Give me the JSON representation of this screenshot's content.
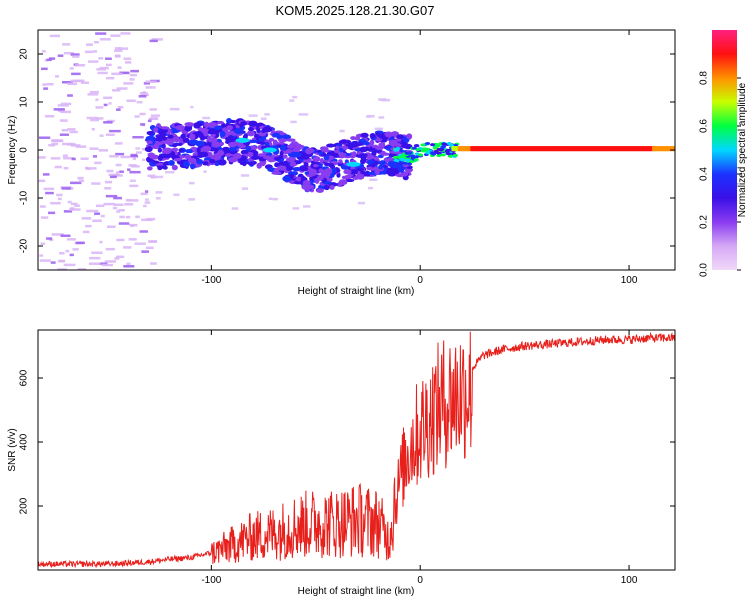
{
  "title": "KOM5.2025.128.21.30.G07",
  "chart_data": [
    {
      "type": "heatmap",
      "xlabel": "Height of straight line (km)",
      "ylabel": "Frequency (Hz)",
      "xlim": [
        -183,
        122
      ],
      "ylim": [
        -25,
        25
      ],
      "xticks": [
        -100,
        0,
        100
      ],
      "yticks": [
        -20,
        -10,
        0,
        10,
        20
      ],
      "colorbar": {
        "label": "Normalized spectral amplitude",
        "range": [
          0,
          1
        ],
        "ticks": [
          0.0,
          0.2,
          0.4,
          0.6,
          0.8
        ],
        "tick_labels": [
          "0.0",
          "0.2",
          "0.4",
          "0.6",
          "0.8"
        ],
        "colors": [
          "#f0d8f8",
          "#d5a8f5",
          "#8a3cf0",
          "#3a10e8",
          "#1b33ff",
          "#00d8ff",
          "#00ff40",
          "#c8ff00",
          "#ff9000",
          "#ff1010",
          "#ff2080"
        ]
      },
      "ridge": [
        {
          "x": -130,
          "y": 0.5
        },
        {
          "x": -110,
          "y": 1.0
        },
        {
          "x": -90,
          "y": 1.8
        },
        {
          "x": -80,
          "y": 1.5
        },
        {
          "x": -70,
          "y": 0.0
        },
        {
          "x": -60,
          "y": -3.0
        },
        {
          "x": -50,
          "y": -4.5
        },
        {
          "x": -40,
          "y": -3.0
        },
        {
          "x": -30,
          "y": -1.5
        },
        {
          "x": -15,
          "y": -0.5
        },
        {
          "x": -5,
          "y": -1.5
        },
        {
          "x": 0,
          "y": 0.0
        },
        {
          "x": 10,
          "y": 0.0
        },
        {
          "x": 122,
          "y": -0.5
        }
      ]
    },
    {
      "type": "line",
      "xlabel": "Height of straight line (km)",
      "ylabel": "SNR (v/v)",
      "xlim": [
        -183,
        122
      ],
      "ylim": [
        0,
        750
      ],
      "xticks": [
        -100,
        0,
        100
      ],
      "yticks": [
        200,
        400,
        600
      ],
      "series": [
        {
          "color": "#e8201c",
          "x": [
            -183,
            -170,
            -150,
            -140,
            -130,
            -120,
            -110,
            -100,
            -90,
            -80,
            -70,
            -60,
            -50,
            -40,
            -30,
            -20,
            -15,
            -10,
            -5,
            0,
            5,
            10,
            15,
            20,
            25,
            30,
            40,
            50,
            60,
            70,
            80,
            90,
            100,
            110,
            122
          ],
          "y": [
            15,
            15,
            15,
            18,
            22,
            30,
            35,
            50,
            75,
            100,
            110,
            130,
            140,
            140,
            150,
            140,
            90,
            300,
            420,
            470,
            520,
            560,
            580,
            600,
            630,
            670,
            690,
            700,
            705,
            710,
            715,
            720,
            720,
            725,
            725
          ]
        }
      ]
    }
  ]
}
